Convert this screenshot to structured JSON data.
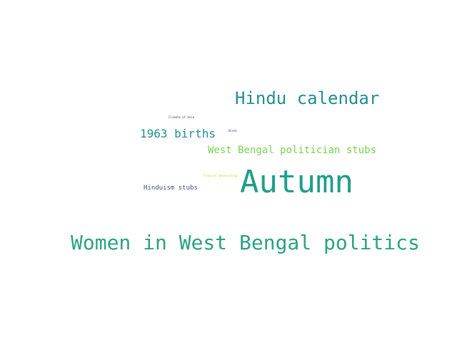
{
  "words": [
    {
      "text": "Women in West Bengal politics",
      "color": "#2aa283"
    },
    {
      "text": "Autumn",
      "color": "#1f9e89"
    },
    {
      "text": "Hindu calendar",
      "color": "#22908b"
    },
    {
      "text": "1963 births",
      "color": "#218f8d"
    },
    {
      "text": "West Bengal politician stubs",
      "color": "#7ad151"
    },
    {
      "text": "Hinduism stubs",
      "color": "#3b528b"
    },
    {
      "text": "Climate of Asia",
      "color": "#482878"
    },
    {
      "text": "Winds",
      "color": "#3e4a89"
    },
    {
      "text": "Tropical meteorology",
      "color": "#b5de2b"
    }
  ]
}
